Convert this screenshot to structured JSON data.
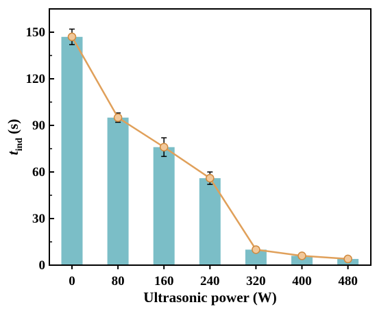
{
  "chart_data": {
    "type": "bar",
    "categories": [
      "0",
      "80",
      "160",
      "240",
      "320",
      "400",
      "480"
    ],
    "values": [
      147,
      95,
      76,
      56,
      10,
      6,
      4
    ],
    "errors": [
      5,
      3,
      6,
      4,
      1.5,
      1.5,
      1.5
    ],
    "overlay_line": true,
    "title": "",
    "xlabel": "Ultrasonic power (W)",
    "ylabel": {
      "main": "t",
      "sub": "ind",
      "unit": " (s)"
    },
    "ylim": [
      0,
      165
    ],
    "yticks": [
      "0",
      "30",
      "60",
      "90",
      "120",
      "150"
    ],
    "grid": false,
    "legend": "none",
    "colors": {
      "bar": "#7bbec7",
      "line": "#e0a05a",
      "marker_fill": "#f2c89a",
      "marker_edge": "#d08a3e",
      "axis": "#000000"
    }
  }
}
